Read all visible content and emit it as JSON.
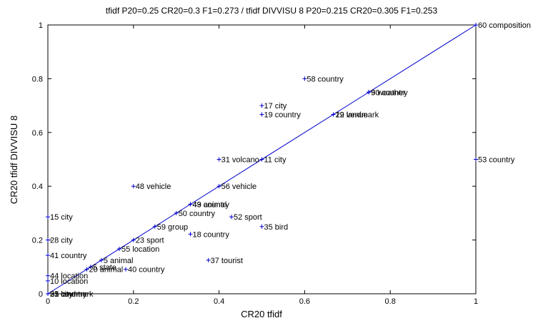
{
  "chart_data": {
    "type": "scatter",
    "title": "tfidf P20=0.25 CR20=0.3 F1=0.273 / tfidf DIVVISU 8 P20=0.215 CR20=0.305 F1=0.253",
    "xlabel": "CR20 tfidf",
    "ylabel": "CR20 tfidf DIVVISU 8",
    "xlim": [
      0,
      1
    ],
    "ylim": [
      0,
      1
    ],
    "xticks": [
      "0",
      "0.2",
      "0.4",
      "0.6",
      "0.8",
      "1"
    ],
    "yticks": [
      "0",
      "0.2",
      "0.4",
      "0.6",
      "0.8",
      "1"
    ],
    "grid": false,
    "reference_line": {
      "from": [
        0,
        0
      ],
      "to": [
        1,
        1
      ]
    },
    "colors": {
      "points": "#0000cc",
      "line": "#0000cc",
      "axes": "#000000"
    },
    "points": [
      {
        "x": 1.0,
        "y": 1.0,
        "label": "60 composition"
      },
      {
        "x": 0.6,
        "y": 0.8,
        "label": "58 country"
      },
      {
        "x": 0.75,
        "y": 0.75,
        "label": "50 country"
      },
      {
        "x": 0.75,
        "y": 0.75,
        "label": "9 weather"
      },
      {
        "x": 0.5,
        "y": 0.7,
        "label": "17 city"
      },
      {
        "x": 0.5,
        "y": 0.667,
        "label": "19 country"
      },
      {
        "x": 0.667,
        "y": 0.667,
        "label": "22 landmark"
      },
      {
        "x": 0.667,
        "y": 0.667,
        "label": "19 venue"
      },
      {
        "x": 1.0,
        "y": 0.5,
        "label": "53 country"
      },
      {
        "x": 0.4,
        "y": 0.5,
        "label": "31 volcano"
      },
      {
        "x": 0.5,
        "y": 0.5,
        "label": "11 city"
      },
      {
        "x": 0.2,
        "y": 0.4,
        "label": "48 vehicle"
      },
      {
        "x": 0.4,
        "y": 0.4,
        "label": "56 vehicle"
      },
      {
        "x": 0.333,
        "y": 0.333,
        "label": "49 animal"
      },
      {
        "x": 0.333,
        "y": 0.333,
        "label": "43 country"
      },
      {
        "x": 0.3,
        "y": 0.3,
        "label": "50 country"
      },
      {
        "x": 0.429,
        "y": 0.286,
        "label": "52 sport"
      },
      {
        "x": 0.0,
        "y": 0.286,
        "label": "15 city"
      },
      {
        "x": 0.25,
        "y": 0.25,
        "label": "59 group"
      },
      {
        "x": 0.5,
        "y": 0.25,
        "label": "35 bird"
      },
      {
        "x": 0.333,
        "y": 0.222,
        "label": "18 country"
      },
      {
        "x": 0.2,
        "y": 0.2,
        "label": "23 sport"
      },
      {
        "x": 0.0,
        "y": 0.2,
        "label": "28 city"
      },
      {
        "x": 0.167,
        "y": 0.167,
        "label": "55 location"
      },
      {
        "x": 0.0,
        "y": 0.143,
        "label": "41 country"
      },
      {
        "x": 0.375,
        "y": 0.125,
        "label": "37 tourist"
      },
      {
        "x": 0.125,
        "y": 0.125,
        "label": "5 animal"
      },
      {
        "x": 0.1,
        "y": 0.1,
        "label": "5 state"
      },
      {
        "x": 0.091,
        "y": 0.091,
        "label": "20 animal"
      },
      {
        "x": 0.182,
        "y": 0.091,
        "label": "40 country"
      },
      {
        "x": 0.0,
        "y": 0.067,
        "label": "44 location"
      },
      {
        "x": 0.0,
        "y": 0.048,
        "label": "10 location"
      },
      {
        "x": 0.0,
        "y": 0.0,
        "label": "25 city"
      },
      {
        "x": 0.0,
        "y": 0.0,
        "label": "33 city"
      },
      {
        "x": 0.0,
        "y": 0.0,
        "label": "21 landmark"
      },
      {
        "x": 0.0,
        "y": 0.0,
        "label": "51 country"
      }
    ]
  }
}
